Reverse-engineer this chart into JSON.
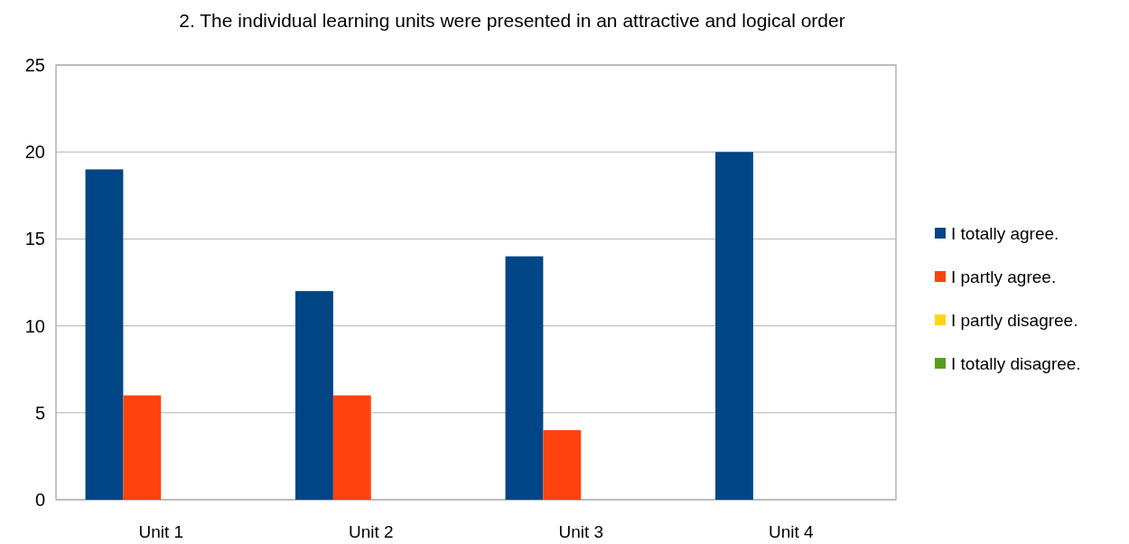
{
  "chart_data": {
    "type": "bar",
    "title": "2. The individual learning units were presented in an attractive and logical order",
    "categories": [
      "Unit 1",
      "Unit 2",
      "Unit 3",
      "Unit 4"
    ],
    "series": [
      {
        "name": "I totally agree.",
        "color": "#004586",
        "values": [
          19,
          12,
          14,
          20
        ]
      },
      {
        "name": "I partly agree.",
        "color": "#ff420e",
        "values": [
          6,
          6,
          4,
          0
        ]
      },
      {
        "name": "I partly disagree.",
        "color": "#ffd320",
        "values": [
          0,
          0,
          0,
          0
        ]
      },
      {
        "name": "I totally disagree.",
        "color": "#579d1c",
        "values": [
          0,
          0,
          0,
          0
        ]
      }
    ],
    "ylim": [
      0,
      25
    ],
    "yticks": [
      0,
      5,
      10,
      15,
      20,
      25
    ],
    "grid": "y",
    "legend": "right"
  }
}
